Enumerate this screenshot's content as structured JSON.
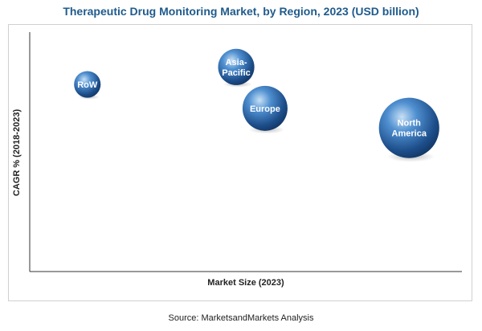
{
  "chart_data": {
    "type": "bubble",
    "title": "Therapeutic Drug Monitoring Market, by Region, 2023 (USD billion)",
    "xlabel": "Market Size (2023)",
    "ylabel": "CAGR % (2018-2023)",
    "grid": false,
    "axis_ticks": false,
    "points": [
      {
        "label": "RoW",
        "x": 1.2,
        "y": 8.6,
        "size": 0.35
      },
      {
        "label": "Asia-Pacific",
        "x": 4.3,
        "y": 9.4,
        "size": 0.65
      },
      {
        "label": "Europe",
        "x": 4.9,
        "y": 7.5,
        "size": 1.0
      },
      {
        "label": "North America",
        "x": 7.9,
        "y": 6.6,
        "size": 1.8
      }
    ],
    "xlim": [
      0,
      9
    ],
    "ylim": [
      0,
      11
    ],
    "bubble_color": "#3a77b8"
  },
  "source": "Source: MarketsandMarkets Analysis"
}
